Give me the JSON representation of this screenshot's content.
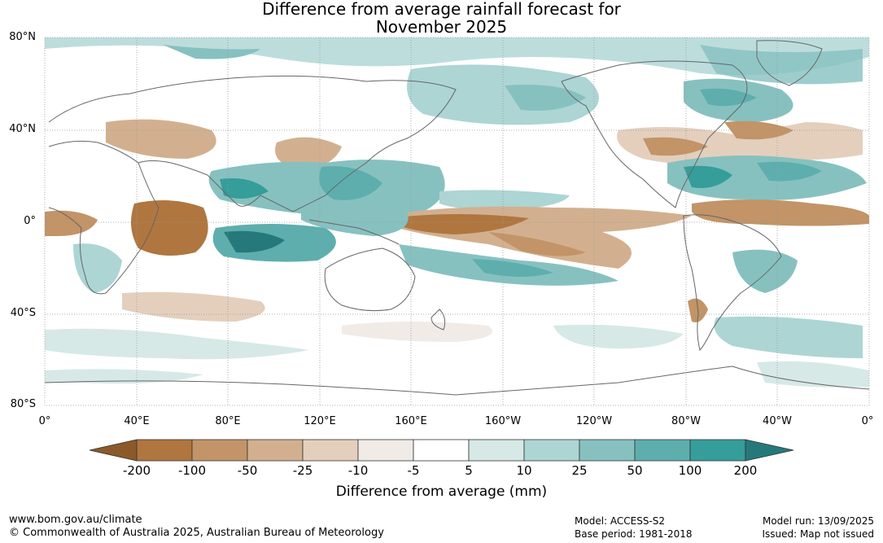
{
  "title_line1": "Difference from average rainfall forecast for",
  "title_line2": "November 2025",
  "lat_labels": [
    "80°N",
    "40°N",
    "0°",
    "40°S",
    "80°S"
  ],
  "lon_labels": [
    "0°",
    "40°E",
    "80°E",
    "120°E",
    "160°E",
    "160°W",
    "120°W",
    "80°W",
    "40°W",
    "0°"
  ],
  "colorbar": {
    "title": "Difference from average (mm)",
    "ticks": [
      "-200",
      "-100",
      "-50",
      "-25",
      "-10",
      "-5",
      "5",
      "10",
      "25",
      "50",
      "100",
      "200"
    ],
    "colors": [
      "#8c5a2a",
      "#b0763f",
      "#c29467",
      "#d2b08f",
      "#e4cfbd",
      "#f0ebe7",
      "#ffffff",
      "#d6e9e7",
      "#acd5d4",
      "#86c1c0",
      "#5eaeae",
      "#359d9a",
      "#26797a"
    ]
  },
  "footer": {
    "url": "www.bom.gov.au/climate",
    "copyright": "© Commonwealth of Australia 2025, Australian Bureau of Meteorology",
    "model": "Model: ACCESS-S2",
    "base_period": "Base period: 1981-2018",
    "model_run": "Model run: 13/09/2025",
    "issued": "Issued: Map not issued"
  }
}
